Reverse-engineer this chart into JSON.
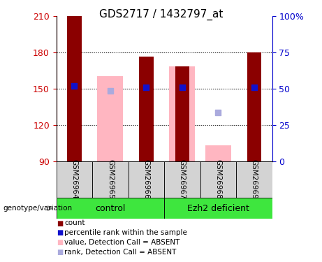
{
  "title": "GDS2717 / 1432797_at",
  "samples": [
    "GSM26964",
    "GSM26965",
    "GSM26966",
    "GSM26967",
    "GSM26968",
    "GSM26969"
  ],
  "ylim": [
    90,
    210
  ],
  "yticks_left": [
    90,
    120,
    150,
    180,
    210
  ],
  "yticks_right": [
    0,
    25,
    50,
    75,
    100
  ],
  "right_ylim": [
    0,
    100
  ],
  "bar_color_dark": "#8B0000",
  "bar_color_pink": "#FFB6C1",
  "dot_color_blue": "#1111CC",
  "dot_color_lightblue": "#AAAADD",
  "group_green": "#3EE63E",
  "group_label_bg": "#D3D3D3",
  "red_bar_heights": [
    210,
    null,
    176,
    168,
    null,
    180
  ],
  "pink_bar_heights": [
    null,
    160,
    null,
    168,
    103,
    null
  ],
  "blue_dot_y": [
    152,
    null,
    151,
    151,
    null,
    151
  ],
  "lightblue_dot_y": [
    null,
    148,
    null,
    null,
    130,
    null
  ],
  "legend_items": [
    {
      "label": "count",
      "color": "#8B0000"
    },
    {
      "label": "percentile rank within the sample",
      "color": "#1111CC"
    },
    {
      "label": "value, Detection Call = ABSENT",
      "color": "#FFB6C1"
    },
    {
      "label": "rank, Detection Call = ABSENT",
      "color": "#AAAADD"
    }
  ],
  "bar_width": 0.4,
  "left_yaxis_color": "#CC0000",
  "right_yaxis_color": "#0000CC",
  "title_fontsize": 11,
  "tick_fontsize": 9,
  "grid_yticks": [
    120,
    150,
    180
  ]
}
